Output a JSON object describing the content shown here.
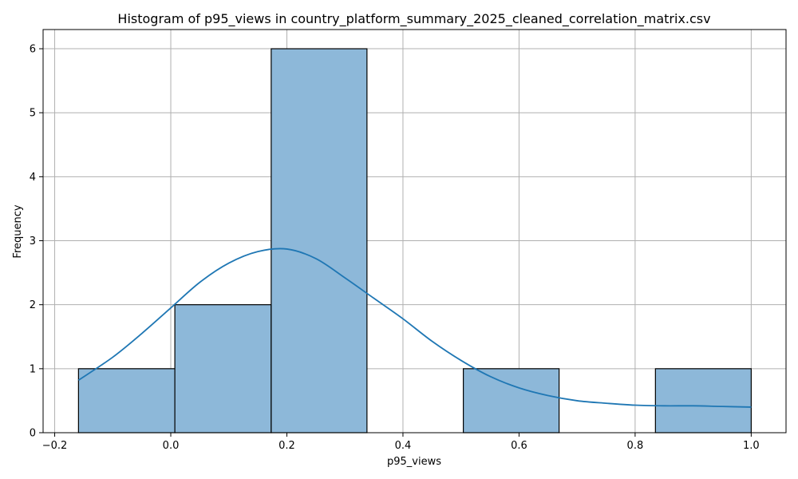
{
  "chart_data": {
    "type": "bar",
    "title": "Histogram of p95_views in country_platform_summary_2025_cleaned_correlation_matrix.csv",
    "xlabel": "p95_views",
    "ylabel": "Frequency",
    "xlim": [
      -0.22,
      1.06
    ],
    "ylim": [
      0,
      6.3
    ],
    "x_ticks": [
      -0.2,
      0.0,
      0.2,
      0.4,
      0.6,
      0.8,
      1.0
    ],
    "x_tick_labels": [
      "−0.2",
      "0.0",
      "0.2",
      "0.4",
      "0.6",
      "0.8",
      "1.0"
    ],
    "y_ticks": [
      0,
      1,
      2,
      3,
      4,
      5,
      6
    ],
    "y_tick_labels": [
      "0",
      "1",
      "2",
      "3",
      "4",
      "5",
      "6"
    ],
    "grid": true,
    "bins": [
      {
        "x0": -0.159,
        "x1": 0.007,
        "count": 1
      },
      {
        "x0": 0.007,
        "x1": 0.173,
        "count": 2
      },
      {
        "x0": 0.173,
        "x1": 0.338,
        "count": 6
      },
      {
        "x0": 0.338,
        "x1": 0.504,
        "count": 0
      },
      {
        "x0": 0.504,
        "x1": 0.669,
        "count": 1
      },
      {
        "x0": 0.669,
        "x1": 0.835,
        "count": 0
      },
      {
        "x0": 0.835,
        "x1": 1.0,
        "count": 1
      }
    ],
    "kde": {
      "x": [
        -0.159,
        -0.1,
        -0.05,
        0.0,
        0.05,
        0.1,
        0.15,
        0.2,
        0.25,
        0.3,
        0.35,
        0.4,
        0.45,
        0.5,
        0.55,
        0.6,
        0.65,
        0.7,
        0.75,
        0.8,
        0.85,
        0.9,
        0.95,
        1.0
      ],
      "y": [
        0.82,
        1.18,
        1.55,
        1.95,
        2.35,
        2.65,
        2.83,
        2.87,
        2.72,
        2.42,
        2.1,
        1.78,
        1.43,
        1.13,
        0.88,
        0.7,
        0.58,
        0.5,
        0.46,
        0.43,
        0.42,
        0.42,
        0.41,
        0.4
      ]
    },
    "colors": {
      "bar_fill": "#8db8d9",
      "bar_edge": "#000000",
      "kde_line": "#1f77b4",
      "grid": "#b0b0b0"
    }
  }
}
